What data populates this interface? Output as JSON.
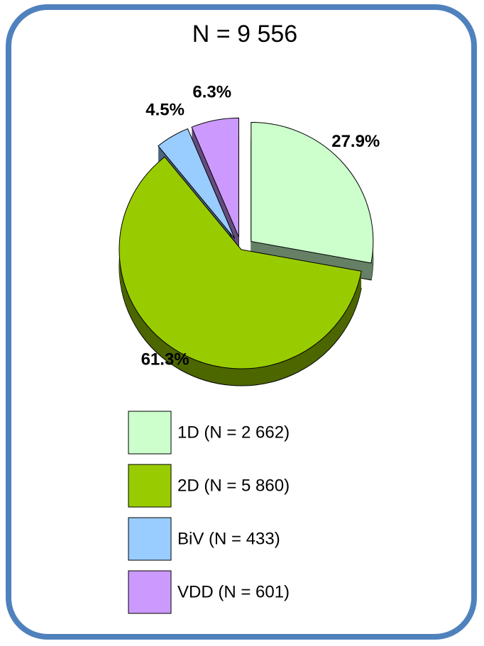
{
  "chart_data": {
    "type": "pie",
    "title": "N = 9 556",
    "categories": [
      "1D (N = 2 662)",
      "2D (N = 5 860)",
      "BiV (N = 433)",
      "VDD (N = 601)"
    ],
    "values": [
      27.9,
      61.3,
      4.5,
      6.3
    ],
    "value_labels": [
      "27.9%",
      "61.3%",
      "4.5%",
      "6.3%"
    ],
    "colors": [
      "#ccffcc",
      "#99cc00",
      "#99ccff",
      "#cc99ff"
    ],
    "legend": "bottom"
  }
}
